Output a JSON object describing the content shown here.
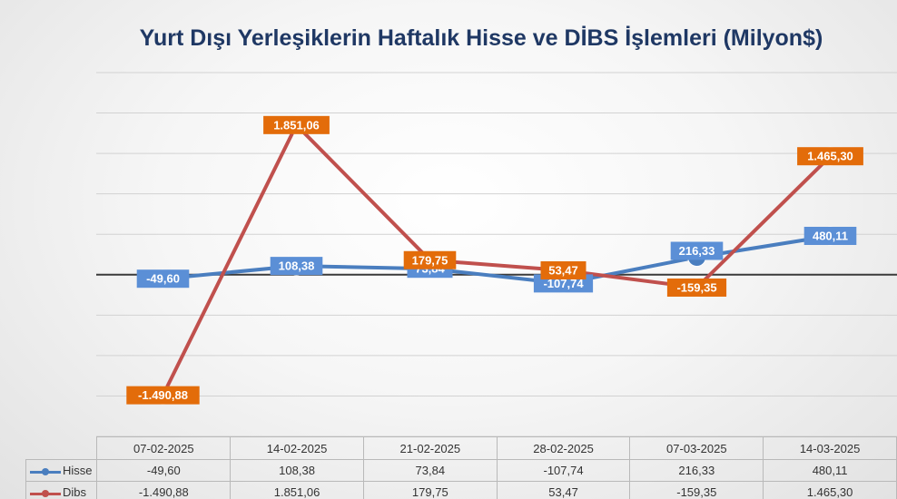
{
  "chart_data": {
    "type": "line",
    "title": "Yurt Dışı Yerleşiklerin Haftalık Hisse ve DİBS İşlemleri (Milyon$)",
    "categories": [
      "07-02-2025",
      "14-02-2025",
      "21-02-2025",
      "28-02-2025",
      "07-03-2025",
      "14-03-2025"
    ],
    "series": [
      {
        "name": "Hisse",
        "values": [
          -49.6,
          108.38,
          73.84,
          -107.74,
          216.33,
          480.11
        ],
        "labels": [
          "-49,60",
          "108,38",
          "73,84",
          "-107,74",
          "216,33",
          "480,11"
        ],
        "color": "#4a7ebf",
        "label_color": "#5b8fd6"
      },
      {
        "name": "Dibs",
        "values": [
          -1490.88,
          1851.06,
          179.75,
          53.47,
          -159.35,
          1465.3
        ],
        "labels": [
          "-1.490,88",
          "1.851,06",
          "179,75",
          "53,47",
          "-159,35",
          "1.465,30"
        ],
        "color": "#c0504d",
        "label_color": "#e36c0a"
      }
    ],
    "ylim": [
      -2000,
      2500
    ],
    "grid": true,
    "data_table": true,
    "legend": "data-table"
  }
}
